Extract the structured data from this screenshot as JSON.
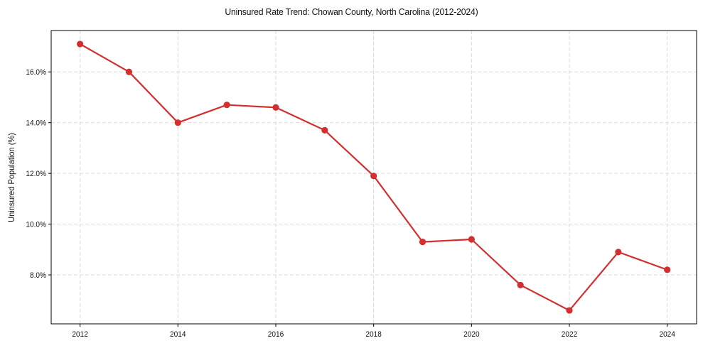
{
  "chart_data": {
    "type": "line",
    "title": "Uninsured Rate Trend: Chowan County, North Carolina (2012-2024)",
    "xlabel": "",
    "ylabel": "Uninsured Population (%)",
    "x": [
      2012,
      2013,
      2014,
      2015,
      2016,
      2017,
      2018,
      2019,
      2020,
      2021,
      2022,
      2023,
      2024
    ],
    "series": [
      {
        "name": "Uninsured Rate",
        "values": [
          17.1,
          16.0,
          14.0,
          14.7,
          14.6,
          13.7,
          11.9,
          9.3,
          9.4,
          7.6,
          6.6,
          8.9,
          8.2
        ],
        "color": "#d32f2f",
        "marker": "circle"
      }
    ],
    "x_ticks": [
      2012,
      2014,
      2016,
      2018,
      2020,
      2022,
      2024
    ],
    "x_tick_labels": [
      "2012",
      "2014",
      "2016",
      "2018",
      "2020",
      "2022",
      "2024"
    ],
    "y_ticks": [
      8,
      10,
      12,
      14,
      16
    ],
    "y_tick_labels": [
      "8.0%",
      "10.0%",
      "12.0%",
      "14.0%",
      "16.0%"
    ],
    "xlim": [
      2011.41,
      2024.6
    ],
    "ylim": [
      6.07,
      17.63
    ],
    "grid": true,
    "legend": null
  }
}
